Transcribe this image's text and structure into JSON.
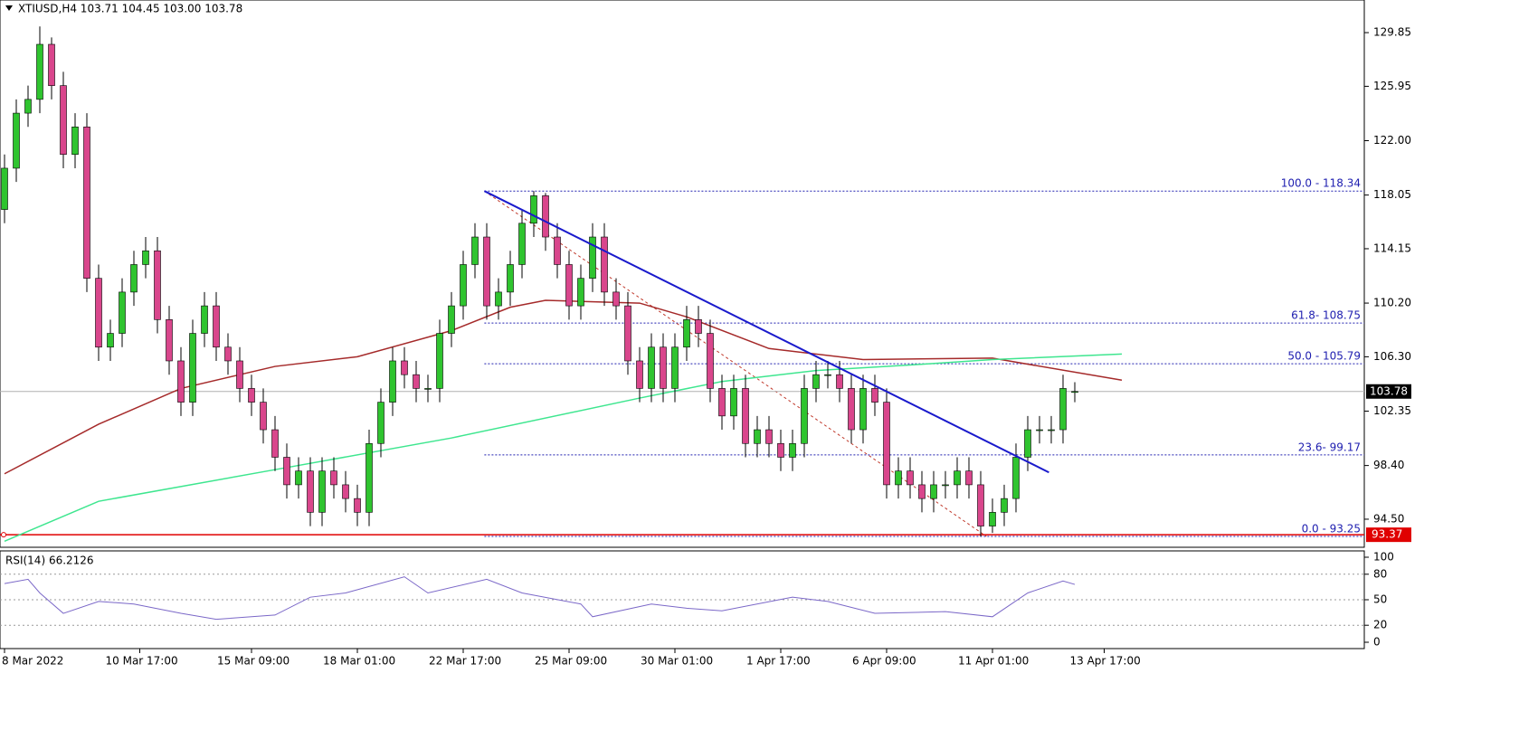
{
  "chart_data": {
    "type": "candlestick",
    "header": "XTIUSD,H4  103.71 104.45 103.00 103.78",
    "up_color": "#2fc42f",
    "down_color": "#d9468c",
    "open": [
      117,
      120,
      124,
      125,
      129,
      126,
      121,
      123,
      112,
      107,
      108,
      111,
      113,
      114,
      109,
      106,
      103,
      108,
      110,
      107,
      106,
      104,
      103,
      101,
      99,
      97,
      98,
      95,
      98,
      97,
      96,
      95,
      100,
      103,
      106,
      105,
      104,
      104,
      108,
      110,
      113,
      115,
      110,
      111,
      113,
      116,
      118,
      115,
      113,
      110,
      112,
      115,
      111,
      110,
      106,
      104,
      107,
      104,
      107,
      109,
      108,
      104,
      102,
      104,
      100,
      101,
      100,
      99,
      100,
      104,
      105,
      105,
      104,
      101,
      104,
      103,
      97,
      98,
      97,
      96,
      97,
      97,
      98,
      97,
      94,
      95,
      96,
      99,
      101,
      101,
      101,
      103.71
    ],
    "high": [
      121,
      125,
      126,
      130.3,
      129.5,
      127,
      124,
      124,
      113,
      109,
      112,
      114,
      115,
      115,
      110,
      107,
      109,
      111,
      111,
      108,
      107,
      105,
      104,
      102,
      100,
      99,
      99,
      99,
      99,
      98,
      97,
      101,
      104,
      107,
      107,
      106,
      105,
      109,
      111,
      114,
      116,
      116,
      112,
      114,
      117,
      118.34,
      118.2,
      116,
      114,
      113,
      116,
      116,
      112,
      111,
      107,
      108,
      108,
      108,
      110,
      110,
      109,
      105,
      105,
      105,
      102,
      102,
      101,
      101,
      105,
      106,
      106,
      106,
      105,
      105,
      105,
      104,
      99,
      99,
      98,
      98,
      98,
      99,
      99,
      98,
      96,
      97,
      100,
      102,
      102,
      102,
      105,
      104.45
    ],
    "low": [
      116,
      119,
      123,
      124,
      125,
      120,
      120,
      111,
      106,
      106,
      107,
      110,
      112,
      108,
      105,
      102,
      102,
      107,
      106,
      105,
      103,
      102,
      100,
      98,
      96,
      96,
      94,
      94,
      96,
      95,
      94,
      94,
      99,
      102,
      104,
      103,
      103,
      103,
      107,
      109,
      112,
      109,
      109,
      110,
      112,
      115,
      114,
      112,
      109,
      109,
      111,
      110,
      109,
      105,
      103,
      103,
      103,
      103,
      106,
      107,
      103,
      101,
      101,
      99,
      99,
      99,
      98,
      98,
      99,
      103,
      104,
      103,
      100,
      100,
      102,
      96,
      96,
      96,
      95,
      95,
      96,
      96,
      96,
      93.25,
      93.5,
      94,
      95,
      98,
      100,
      100,
      100,
      103
    ],
    "close": [
      120,
      124,
      125,
      129,
      126,
      121,
      123,
      112,
      107,
      108,
      111,
      113,
      114,
      109,
      106,
      103,
      108,
      110,
      107,
      106,
      104,
      103,
      101,
      99,
      97,
      98,
      95,
      98,
      97,
      96,
      95,
      100,
      103,
      106,
      105,
      104,
      104,
      108,
      110,
      113,
      115,
      110,
      111,
      113,
      116,
      118,
      115,
      113,
      110,
      112,
      115,
      111,
      110,
      106,
      104,
      107,
      104,
      107,
      109,
      108,
      104,
      102,
      104,
      100,
      101,
      100,
      99,
      100,
      104,
      105,
      105,
      104,
      101,
      104,
      103,
      97,
      98,
      97,
      96,
      97,
      97,
      98,
      97,
      94,
      95,
      96,
      99,
      101,
      101,
      101,
      104,
      103.78
    ],
    "ylim": [
      92.46,
      132.22
    ],
    "yticks": [
      129.85,
      125.95,
      {
        "value": 122,
        "label": "122.00"
      },
      118.05,
      114.15,
      {
        "value": 110.2,
        "label": "110.20"
      },
      {
        "value": 106.3,
        "label": "106.30"
      },
      102.35,
      {
        "value": 98.4,
        "label": "98.40"
      },
      {
        "value": 94.5,
        "label": "94.50"
      }
    ],
    "overlays": [
      {
        "color": "#a52a2a",
        "x": [
          0,
          8,
          15,
          23,
          30,
          38,
          43,
          46,
          54,
          58,
          65,
          73,
          84,
          95
        ],
        "values": [
          97.8,
          101.4,
          104,
          105.6,
          106.3,
          108.2,
          109.9,
          110.4,
          110.2,
          109.2,
          106.9,
          106.1,
          106.2,
          104.6
        ]
      },
      {
        "color": "#3ee68f",
        "x": [
          0,
          8,
          23,
          38,
          54,
          61,
          69,
          77,
          84,
          95
        ],
        "values": [
          92.9,
          95.8,
          98.1,
          100.4,
          103.3,
          104.5,
          105.3,
          105.7,
          106.1,
          106.5
        ]
      }
    ],
    "trendline": {
      "color": "#1a1acc",
      "x": [
        40.8,
        88.8
      ],
      "values": [
        118.34,
        97.9
      ]
    },
    "fib": {
      "color": "#2020b0",
      "start": 40.8,
      "levels": [
        {
          "label": "100.0 - 118.34",
          "value": 118.34
        },
        {
          "label": "61.8- 108.75",
          "value": 108.75
        },
        {
          "label": "50.0 - 105.79",
          "value": 105.79
        },
        {
          "label": "23.6- 99.17",
          "value": 99.17
        },
        {
          "label": "0.0 - 93.25",
          "value": 93.25
        }
      ]
    },
    "last_price": 103.78,
    "support": 93.37,
    "rsi": {
      "label": "RSI(14) 66.2126",
      "color": "#7b68c8",
      "ylim": [
        0,
        100
      ],
      "yticks": [
        100,
        80,
        50,
        20,
        0
      ],
      "levels": [
        80,
        50,
        20
      ],
      "x": [
        0,
        2,
        3,
        5,
        8,
        11,
        15,
        18,
        23,
        26,
        29,
        34,
        36,
        41,
        44,
        49,
        50,
        55,
        58,
        61,
        67,
        70,
        74,
        80,
        84,
        87,
        90,
        91
      ],
      "values": [
        69,
        74,
        58,
        34,
        48,
        45,
        34,
        27,
        32,
        53,
        58,
        77,
        58,
        74,
        58,
        45,
        30,
        45,
        40,
        37,
        53,
        48,
        34,
        36,
        30,
        58,
        72,
        68
      ]
    },
    "xlabels": {
      "labels": [
        "8 Mar 2022",
        "10 Mar 17:00",
        "15 Mar 09:00",
        "18 Mar 01:00",
        "22 Mar 17:00",
        "25 Mar 09:00",
        "30 Mar 01:00",
        "1 Apr 17:00",
        "6 Apr 09:00",
        "11 Apr 01:00",
        "13 Apr 17:00"
      ],
      "x": [
        0,
        11.5,
        21,
        30,
        39,
        48,
        57,
        66,
        75,
        84,
        93.5
      ]
    }
  }
}
